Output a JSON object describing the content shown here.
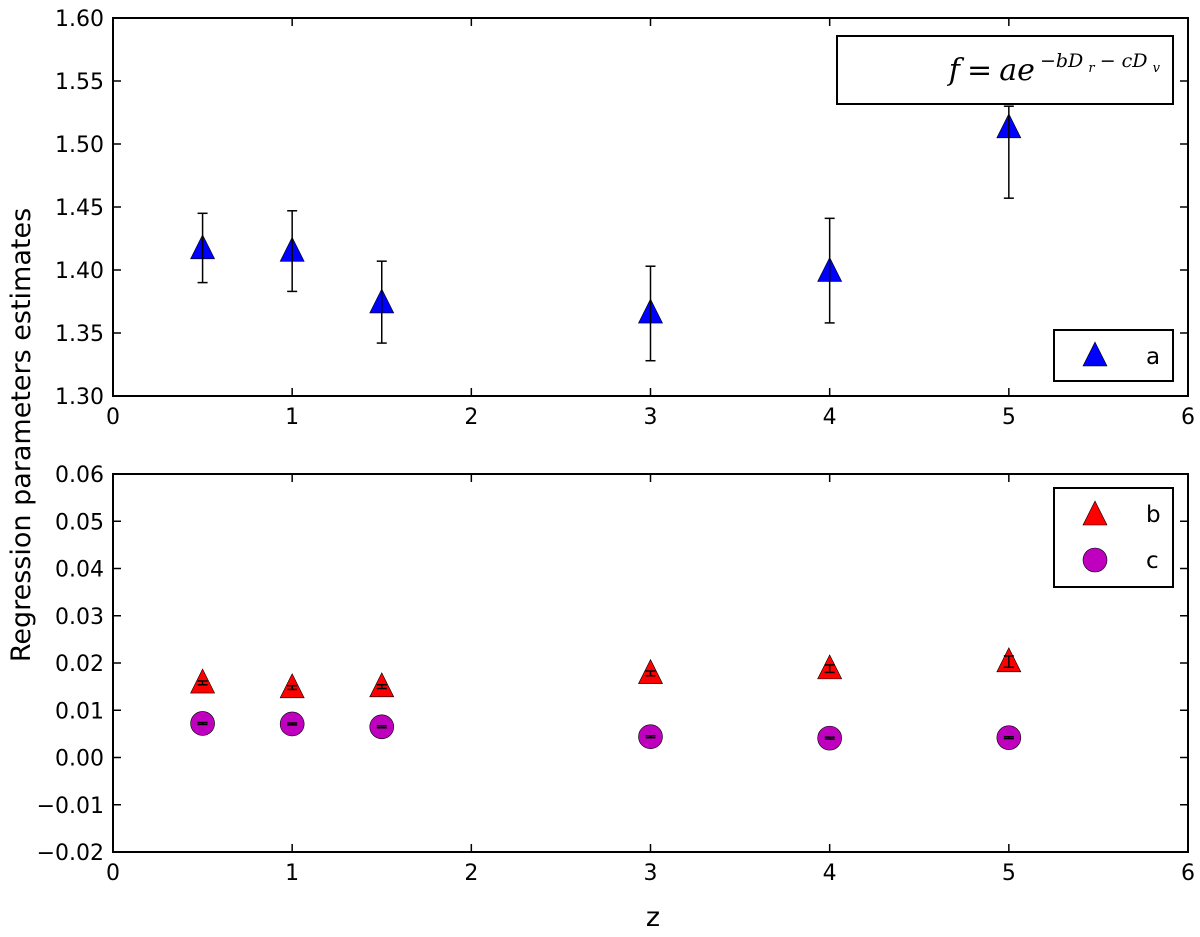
{
  "chart_data": [
    {
      "type": "scatter",
      "panel": "top",
      "xlim": [
        0,
        6
      ],
      "ylim": [
        1.3,
        1.6
      ],
      "x_ticks": [
        "0",
        "1",
        "2",
        "3",
        "4",
        "5",
        "6"
      ],
      "y_ticks": [
        "1.30",
        "1.35",
        "1.40",
        "1.45",
        "1.50",
        "1.55",
        "1.60"
      ],
      "annotation": {
        "lhs": "f",
        "eq": "=",
        "base": "ae",
        "exp_pre": "−bD",
        "exp_sub1": "r",
        "exp_mid": " − cD",
        "exp_sub2": "v"
      },
      "legend_position": "lower-right",
      "series": [
        {
          "name": "a",
          "marker": "triangle",
          "color": "#0000ff",
          "points": [
            {
              "x": 0.5,
              "y": 1.417,
              "err_low": 1.39,
              "err_high": 1.445
            },
            {
              "x": 1.0,
              "y": 1.415,
              "err_low": 1.383,
              "err_high": 1.447
            },
            {
              "x": 1.5,
              "y": 1.374,
              "err_low": 1.342,
              "err_high": 1.407
            },
            {
              "x": 3.0,
              "y": 1.366,
              "err_low": 1.328,
              "err_high": 1.403
            },
            {
              "x": 4.0,
              "y": 1.399,
              "err_low": 1.358,
              "err_high": 1.441
            },
            {
              "x": 5.0,
              "y": 1.513,
              "err_low": 1.457,
              "err_high": 1.53
            }
          ]
        }
      ]
    },
    {
      "type": "scatter",
      "panel": "bottom",
      "xlim": [
        0,
        6
      ],
      "ylim": [
        -0.02,
        0.06
      ],
      "xlabel": "z",
      "x_ticks": [
        "0",
        "1",
        "2",
        "3",
        "4",
        "5",
        "6"
      ],
      "y_ticks": [
        "−0.02",
        "−0.01",
        "0.00",
        "0.01",
        "0.02",
        "0.03",
        "0.04",
        "0.05",
        "0.06"
      ],
      "legend_position": "upper-right",
      "series": [
        {
          "name": "b",
          "marker": "triangle",
          "color": "#ff0000",
          "points": [
            {
              "x": 0.5,
              "y": 0.0158,
              "err_low": 0.0154,
              "err_high": 0.0162
            },
            {
              "x": 1.0,
              "y": 0.0148,
              "err_low": 0.0144,
              "err_high": 0.0152
            },
            {
              "x": 1.5,
              "y": 0.015,
              "err_low": 0.0146,
              "err_high": 0.0154
            },
            {
              "x": 3.0,
              "y": 0.0178,
              "err_low": 0.0173,
              "err_high": 0.0183
            },
            {
              "x": 4.0,
              "y": 0.0188,
              "err_low": 0.018,
              "err_high": 0.0196
            },
            {
              "x": 5.0,
              "y": 0.0203,
              "err_low": 0.0191,
              "err_high": 0.0215
            }
          ]
        },
        {
          "name": "c",
          "marker": "circle",
          "color": "#bf00bf",
          "points": [
            {
              "x": 0.5,
              "y": 0.0072,
              "err_low": 0.007,
              "err_high": 0.0074
            },
            {
              "x": 1.0,
              "y": 0.0071,
              "err_low": 0.0069,
              "err_high": 0.0073
            },
            {
              "x": 1.5,
              "y": 0.0065,
              "err_low": 0.0063,
              "err_high": 0.0067
            },
            {
              "x": 3.0,
              "y": 0.0044,
              "err_low": 0.0042,
              "err_high": 0.0046
            },
            {
              "x": 4.0,
              "y": 0.0041,
              "err_low": 0.0039,
              "err_high": 0.0043
            },
            {
              "x": 5.0,
              "y": 0.0042,
              "err_low": 0.004,
              "err_high": 0.0044
            }
          ]
        }
      ]
    }
  ],
  "shared_ylabel": "Regression parameters estimates"
}
